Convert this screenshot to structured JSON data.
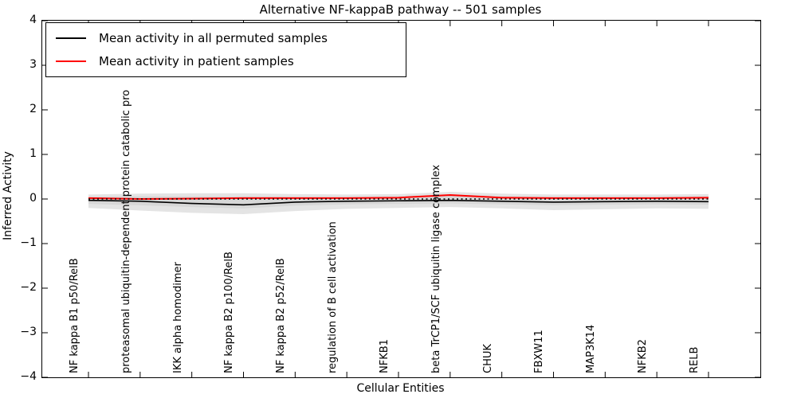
{
  "title": "Alternative NF-kappaB pathway -- 501 samples",
  "legend": {
    "entries": [
      {
        "label": "Mean activity in all permuted samples",
        "color": "#000000"
      },
      {
        "label": "Mean activity in patient samples",
        "color": "#ff0000"
      }
    ],
    "position": "upper left"
  },
  "chart_data": {
    "type": "line",
    "title": "Alternative NF-kappaB pathway -- 501 samples",
    "xlabel": "Cellular Entities",
    "ylabel": "Inferred Activity",
    "ylim": [
      -4,
      4
    ],
    "grid": false,
    "ytick_values": [
      4,
      3,
      2,
      1,
      0,
      -1,
      -2,
      -3,
      -4
    ],
    "ytick_labels": [
      "4",
      "3",
      "2",
      "1",
      "0",
      "−1",
      "−2",
      "−3",
      "−4"
    ],
    "categories": [
      "NF kappa B1 p50/RelB",
      "proteasomal ubiquitin-dependent protein catabolic pro",
      "IKK alpha homodimer",
      "NF kappa B2 p100/RelB",
      "NF kappa B2 p52/RelB",
      "regulation of B cell activation",
      "NFKB1",
      "beta TrCP1/SCF ubiquitin ligase complex",
      "CHUK",
      "FBXW11",
      "MAP3K14",
      "NFKB2",
      "RELB"
    ],
    "series": [
      {
        "name": "Mean activity in all permuted samples",
        "color": "#000000",
        "style": "solid",
        "width": 1.6,
        "values": [
          -0.03,
          -0.05,
          -0.1,
          -0.13,
          -0.07,
          -0.05,
          -0.04,
          -0.03,
          -0.05,
          -0.07,
          -0.06,
          -0.05,
          -0.06
        ]
      },
      {
        "name": "Mean activity in patient samples",
        "color": "#ff0000",
        "style": "solid",
        "width": 2,
        "values": [
          0.02,
          0.0,
          0.01,
          0.02,
          0.02,
          0.02,
          0.03,
          0.09,
          0.03,
          0.02,
          0.02,
          0.02,
          0.03
        ]
      },
      {
        "name": "zero-reference",
        "color": "#000000",
        "style": "dotted",
        "width": 1.4,
        "values": [
          0,
          0,
          0,
          0,
          0,
          0,
          0,
          0,
          0,
          0,
          0,
          0,
          0
        ]
      }
    ],
    "bands": [
      {
        "name": "permuted-range-outer",
        "color": "#e4e4e4",
        "top": [
          0.1,
          0.12,
          0.13,
          0.13,
          0.11,
          0.1,
          0.11,
          0.16,
          0.12,
          0.1,
          0.1,
          0.1,
          0.11
        ],
        "bottom": [
          -0.2,
          -0.26,
          -0.31,
          -0.34,
          -0.27,
          -0.22,
          -0.2,
          -0.18,
          -0.21,
          -0.25,
          -0.23,
          -0.21,
          -0.22
        ]
      },
      {
        "name": "permuted-range-inner",
        "color": "#d7d7d7",
        "top": [
          0.05,
          0.06,
          0.06,
          0.06,
          0.05,
          0.05,
          0.06,
          0.1,
          0.06,
          0.05,
          0.05,
          0.05,
          0.06
        ],
        "bottom": [
          -0.11,
          -0.14,
          -0.18,
          -0.21,
          -0.15,
          -0.12,
          -0.11,
          -0.1,
          -0.12,
          -0.14,
          -0.13,
          -0.12,
          -0.13
        ]
      }
    ],
    "legend_position": "upper left"
  }
}
